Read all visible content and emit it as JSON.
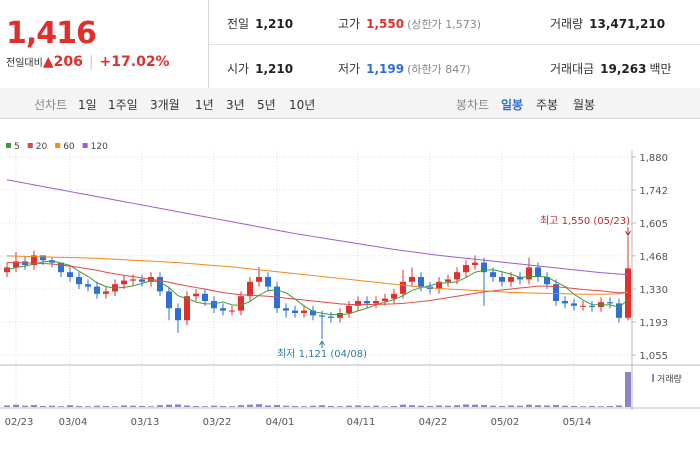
{
  "header": {
    "price": "1,416",
    "change_label": "전일대비",
    "change": "206",
    "change_pct": "+17.02%",
    "stats": [
      {
        "label": "전일",
        "value": "1,210"
      },
      {
        "label": "고가",
        "value": "1,550",
        "note": "(상한가 1,573)"
      },
      {
        "label": "거래량",
        "value": "13,471,210"
      },
      {
        "label": "시가",
        "value": "1,210"
      },
      {
        "label": "저가",
        "value": "1,199",
        "note": "(하한가 847)"
      },
      {
        "label": "거래대금",
        "value": "19,263",
        "note": "백만"
      }
    ]
  },
  "nav": {
    "line_label": "선차트",
    "line_periods": [
      "1일",
      "1주일",
      "3개월",
      "1년",
      "3년",
      "5년",
      "10년"
    ],
    "candle_label": "봉차트",
    "candle_periods": [
      "일봉",
      "주봉",
      "월봉"
    ]
  },
  "chart_data": {
    "type": "candlestick",
    "up_color": "#e0302e",
    "down_color": "#2d6fd6",
    "volume_color": "#8c84c4",
    "volume_label": "거래량",
    "annotations": [
      "최고 1,550 (05/23)",
      "최저 1,121 (04/08)"
    ],
    "ylim": [
      1055,
      1880
    ],
    "yticks": [
      {
        "value": 1880,
        "label": "1,880"
      },
      {
        "value": 1742,
        "label": "1,742"
      },
      {
        "value": 1605,
        "label": "1,605"
      },
      {
        "value": 1468,
        "label": "1,468"
      },
      {
        "value": 1330,
        "label": "1,330"
      },
      {
        "value": 1193,
        "label": "1,193"
      },
      {
        "value": 1055,
        "label": "1,055"
      }
    ],
    "volume_ylim": [
      0,
      15000000
    ],
    "grid": true,
    "categories": [
      null,
      "02/23",
      null,
      null,
      null,
      null,
      null,
      "03/04",
      null,
      null,
      null,
      null,
      null,
      null,
      null,
      "03/13",
      null,
      null,
      null,
      null,
      null,
      null,
      null,
      "03/22",
      null,
      null,
      null,
      null,
      null,
      null,
      "04/01",
      null,
      null,
      null,
      null,
      null,
      null,
      null,
      null,
      "04/11",
      null,
      null,
      null,
      null,
      null,
      null,
      null,
      "04/22",
      null,
      null,
      null,
      null,
      null,
      null,
      null,
      "05/02",
      null,
      null,
      null,
      null,
      null,
      null,
      null,
      "05/14",
      null,
      null,
      null,
      null,
      null,
      null
    ],
    "open": [
      1400,
      1420,
      1445,
      1430,
      1470,
      1450,
      1440,
      1400,
      1380,
      1350,
      1340,
      1310,
      1320,
      1350,
      1365,
      1370,
      1360,
      1380,
      1320,
      1250,
      1200,
      1300,
      1310,
      1280,
      1250,
      1240,
      1240,
      1300,
      1360,
      1380,
      1340,
      1250,
      1240,
      1230,
      1240,
      1220,
      1215,
      1210,
      1230,
      1260,
      1280,
      1270,
      1280,
      1290,
      1310,
      1360,
      1380,
      1340,
      1330,
      1360,
      1370,
      1400,
      1430,
      1440,
      1400,
      1380,
      1360,
      1380,
      1370,
      1420,
      1380,
      1350,
      1280,
      1270,
      1260,
      1260,
      1255,
      1275,
      1270,
      1210
    ],
    "high": [
      1440,
      1484,
      1465,
      1490,
      1470,
      1460,
      1440,
      1420,
      1400,
      1370,
      1360,
      1340,
      1370,
      1385,
      1390,
      1390,
      1400,
      1400,
      1340,
      1270,
      1320,
      1330,
      1330,
      1300,
      1270,
      1260,
      1320,
      1380,
      1422,
      1400,
      1360,
      1270,
      1260,
      1260,
      1260,
      1240,
      1235,
      1250,
      1280,
      1300,
      1300,
      1300,
      1310,
      1330,
      1410,
      1420,
      1400,
      1360,
      1380,
      1390,
      1420,
      1450,
      1470,
      1460,
      1420,
      1400,
      1400,
      1400,
      1460,
      1440,
      1400,
      1370,
      1300,
      1290,
      1280,
      1280,
      1295,
      1295,
      1290,
      1550
    ],
    "low": [
      1380,
      1400,
      1410,
      1410,
      1430,
      1420,
      1380,
      1360,
      1330,
      1320,
      1290,
      1290,
      1300,
      1330,
      1345,
      1340,
      1340,
      1300,
      1200,
      1147,
      1180,
      1280,
      1260,
      1230,
      1220,
      1220,
      1220,
      1280,
      1340,
      1320,
      1230,
      1210,
      1210,
      1210,
      1200,
      1121,
      1190,
      1190,
      1210,
      1240,
      1250,
      1250,
      1260,
      1270,
      1290,
      1340,
      1320,
      1310,
      1310,
      1340,
      1350,
      1380,
      1410,
      1260,
      1360,
      1340,
      1340,
      1350,
      1350,
      1360,
      1330,
      1260,
      1250,
      1240,
      1240,
      1235,
      1235,
      1250,
      1190,
      1199
    ],
    "close": [
      1420,
      1445,
      1430,
      1470,
      1450,
      1440,
      1400,
      1380,
      1350,
      1340,
      1310,
      1320,
      1350,
      1365,
      1370,
      1360,
      1380,
      1320,
      1250,
      1200,
      1300,
      1310,
      1280,
      1250,
      1240,
      1240,
      1300,
      1360,
      1380,
      1340,
      1250,
      1240,
      1230,
      1240,
      1220,
      1215,
      1210,
      1230,
      1260,
      1280,
      1270,
      1280,
      1290,
      1310,
      1360,
      1380,
      1340,
      1330,
      1360,
      1370,
      1400,
      1430,
      1440,
      1400,
      1380,
      1360,
      1380,
      1370,
      1420,
      1380,
      1350,
      1280,
      1270,
      1260,
      1260,
      1255,
      1275,
      1270,
      1210,
      1416
    ],
    "volume": [
      600000,
      900000,
      500000,
      800000,
      400000,
      500000,
      300000,
      700000,
      400000,
      300000,
      500000,
      400000,
      300000,
      600000,
      500000,
      400000,
      300000,
      700000,
      900000,
      1000000,
      600000,
      400000,
      300000,
      500000,
      400000,
      300000,
      700000,
      900000,
      1100000,
      600000,
      800000,
      500000,
      400000,
      300000,
      500000,
      700000,
      400000,
      300000,
      500000,
      600000,
      400000,
      500000,
      300000,
      400000,
      900000,
      700000,
      500000,
      400000,
      600000,
      500000,
      700000,
      1000000,
      900000,
      800000,
      500000,
      400000,
      600000,
      500000,
      900000,
      700000,
      600000,
      800000,
      500000,
      400000,
      300000,
      400000,
      300000,
      400000,
      600000,
      13471210
    ],
    "series": [
      {
        "name": "5",
        "color": "#3c9a3c",
        "values": [
          1410,
          1420,
          1425,
          1435,
          1443,
          1447,
          1438,
          1428,
          1404,
          1382,
          1356,
          1340,
          1334,
          1337,
          1343,
          1353,
          1365,
          1359,
          1336,
          1302,
          1290,
          1276,
          1268,
          1268,
          1276,
          1264,
          1262,
          1278,
          1304,
          1324,
          1326,
          1314,
          1288,
          1260,
          1236,
          1229,
          1223,
          1223,
          1227,
          1239,
          1250,
          1264,
          1276,
          1286,
          1302,
          1324,
          1336,
          1344,
          1354,
          1356,
          1360,
          1378,
          1400,
          1408,
          1410,
          1402,
          1392,
          1378,
          1382,
          1382,
          1380,
          1360,
          1340,
          1308,
          1284,
          1265,
          1264,
          1264,
          1254,
          1285
        ]
      },
      {
        "name": "20",
        "color": "#e04848",
        "values": [
          1440,
          1440,
          1439,
          1438,
          1436,
          1434,
          1430,
          1425,
          1420,
          1414,
          1408,
          1400,
          1393,
          1387,
          1382,
          1376,
          1370,
          1365,
          1358,
          1350,
          1343,
          1336,
          1330,
          1322,
          1315,
          1310,
          1306,
          1304,
          1302,
          1300,
          1296,
          1292,
          1288,
          1284,
          1280,
          1276,
          1272,
          1268,
          1266,
          1265,
          1265,
          1266,
          1267,
          1268,
          1270,
          1274,
          1278,
          1282,
          1288,
          1294,
          1300,
          1306,
          1312,
          1318,
          1322,
          1326,
          1330,
          1334,
          1338,
          1342,
          1342,
          1340,
          1336,
          1332,
          1328,
          1325,
          1322,
          1318,
          1314,
          1318
        ]
      },
      {
        "name": "60",
        "color": "#f08a1e",
        "values": [
          1468,
          1467,
          1466,
          1465,
          1464,
          1463,
          1462,
          1461,
          1460,
          1459,
          1458,
          1456,
          1454,
          1452,
          1450,
          1448,
          1446,
          1444,
          1442,
          1440,
          1437,
          1434,
          1431,
          1428,
          1425,
          1422,
          1418,
          1414,
          1410,
          1406,
          1402,
          1398,
          1394,
          1390,
          1386,
          1382,
          1378,
          1374,
          1370,
          1366,
          1362,
          1358,
          1354,
          1350,
          1346,
          1342,
          1338,
          1335,
          1332,
          1330,
          1328,
          1326,
          1324,
          1322,
          1320,
          1318,
          1316,
          1315,
          1314,
          1313,
          1312,
          1311,
          1310,
          1309,
          1308,
          1308,
          1308,
          1309,
          1310,
          1316
        ]
      },
      {
        "name": "120",
        "color": "#a05cc8",
        "values": [
          1785,
          1778,
          1771,
          1764,
          1757,
          1750,
          1743,
          1736,
          1729,
          1722,
          1715,
          1708,
          1701,
          1694,
          1687,
          1680,
          1673,
          1666,
          1659,
          1652,
          1645,
          1638,
          1631,
          1624,
          1617,
          1610,
          1603,
          1596,
          1589,
          1582,
          1575,
          1568,
          1561,
          1555,
          1549,
          1543,
          1537,
          1531,
          1525,
          1519,
          1513,
          1507,
          1501,
          1495,
          1490,
          1485,
          1480,
          1475,
          1470,
          1466,
          1462,
          1458,
          1454,
          1450,
          1446,
          1442,
          1438,
          1434,
          1430,
          1426,
          1422,
          1418,
          1414,
          1410,
          1406,
          1402,
          1398,
          1395,
          1392,
          1390
        ]
      }
    ]
  }
}
